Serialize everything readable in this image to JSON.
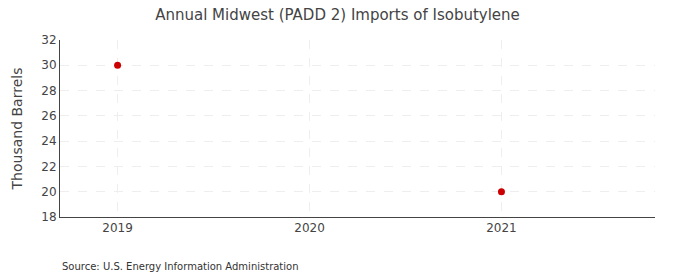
{
  "chart_data": {
    "type": "scatter",
    "title": "Annual Midwest (PADD 2) Imports of Isobutylene",
    "y_label": "Thousand Barrels",
    "annotations": [
      "Source: U.S. Energy Information Administration"
    ],
    "x": [
      2019,
      2021
    ],
    "values": [
      30,
      20
    ],
    "color": "#cc0000",
    "marker": "circle",
    "xlim": [
      2018.7,
      2021.8
    ],
    "xticks": [
      2019,
      2020,
      2021
    ],
    "ylim": [
      18,
      32
    ],
    "yticks": [
      18,
      20,
      22,
      24,
      26,
      28,
      30,
      32
    ],
    "grid": true
  }
}
